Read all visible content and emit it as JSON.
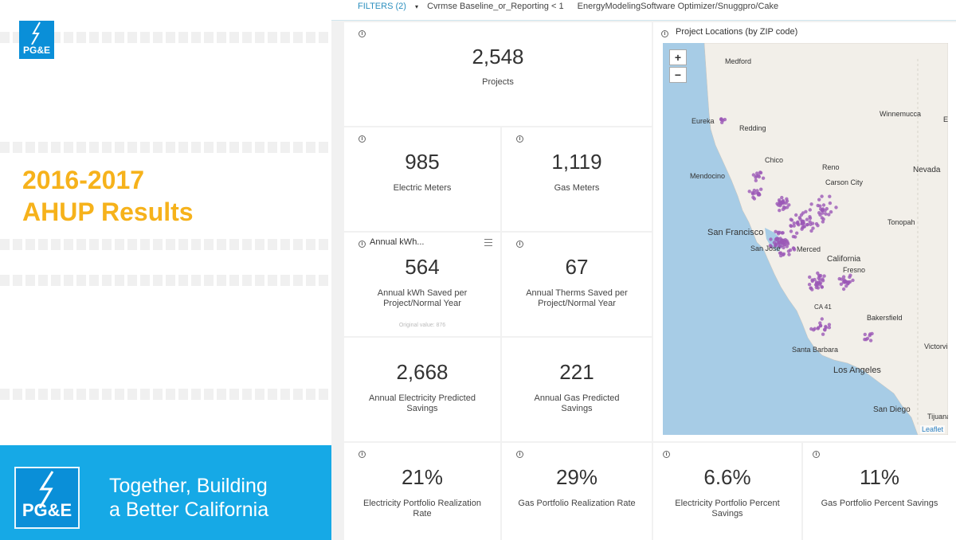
{
  "slide": {
    "logo_text": "PG&E",
    "title_line1": "2016-2017",
    "title_line2": "AHUP Results",
    "tagline_line1": "Together, Building",
    "tagline_line2": "a Better California",
    "colors": {
      "title": "#f6b21b",
      "banner": "#16a9e6",
      "logo_blue": "#0a8fd8"
    }
  },
  "filterbar": {
    "label": "FILTERS (2)",
    "caret": "▾",
    "items": [
      "Cvrmse  Baseline_or_Reporting < 1",
      "EnergyModelingSoftware  Optimizer/Snuggpro/Cake"
    ]
  },
  "info_glyph": "i",
  "kpis": {
    "projects": {
      "value": "2,548",
      "label": "Projects"
    },
    "electric_meters": {
      "value": "985",
      "label": "Electric Meters"
    },
    "gas_meters": {
      "value": "1,119",
      "label": "Gas Meters"
    },
    "kwh_saved": {
      "header": "Annual kWh...",
      "value": "564",
      "label": "Annual kWh Saved per Project/Normal Year",
      "faint": "Original value: 876"
    },
    "therms_saved": {
      "value": "67",
      "label": "Annual Therms Saved per Project/Normal Year"
    },
    "elec_predicted": {
      "value": "2,668",
      "label": "Annual Electricity Predicted Savings"
    },
    "gas_predicted": {
      "value": "221",
      "label": "Annual Gas Predicted Savings"
    },
    "elec_realization": {
      "value": "21%",
      "label": "Electricity Portfolio Realization Rate"
    },
    "gas_realization": {
      "value": "29%",
      "label": "Gas Portfolio Realization Rate"
    },
    "elec_percent": {
      "value": "6.6%",
      "label": "Electricity Portfolio Percent Savings"
    },
    "gas_percent": {
      "value": "11%",
      "label": "Gas Portfolio Percent Savings"
    }
  },
  "map": {
    "title": "Project Locations (by ZIP code)",
    "zoom_in": "+",
    "zoom_out": "−",
    "attribution": "Leaflet",
    "colors": {
      "water": "#a7cce6",
      "land": "#f2efe9",
      "marker": "#9b59b6"
    },
    "cities": [
      "Medford",
      "Winnemucca",
      "Elko",
      "Eureka",
      "Redding",
      "Chico",
      "Reno",
      "Carson City",
      "Nevada",
      "Mendocino",
      "San Francisco",
      "San Jose",
      "Merced",
      "California",
      "Fresno",
      "Tonopah",
      "CA 41",
      "Bakersfield",
      "Santa Barbara",
      "Victorville",
      "Los Angeles",
      "San Diego",
      "Tijuana"
    ]
  }
}
